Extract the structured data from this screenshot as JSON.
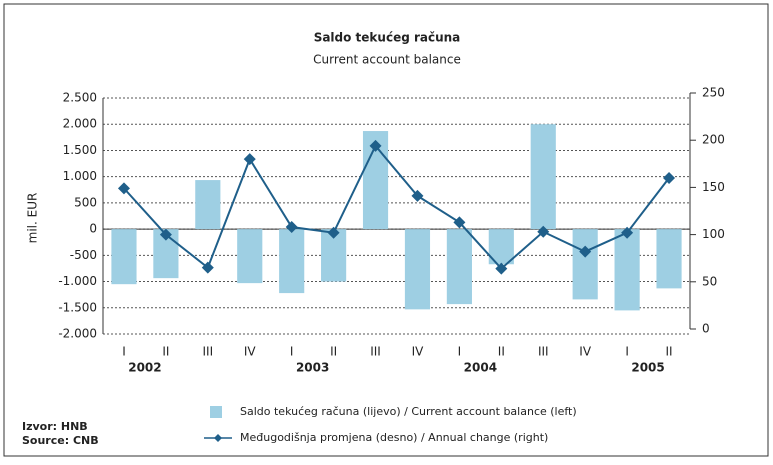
{
  "chart_data": {
    "type": "bar_line",
    "title": "Saldo tekućeg računa",
    "subtitle": "Current account balance",
    "y_label": "mil. EUR",
    "categories": [
      "I",
      "II",
      "III",
      "IV",
      "I",
      "II",
      "III",
      "IV",
      "I",
      "II",
      "III",
      "IV",
      "I",
      "II"
    ],
    "year_labels": [
      "2002",
      "2003",
      "2004",
      "2005"
    ],
    "series": [
      {
        "name": "Saldo tekućeg računa (lijevo) / Current account balance (left)",
        "color": "#9ecfe3",
        "kind": "bar",
        "axis": "y",
        "values": [
          -1050,
          -935,
          935,
          -1030,
          -1220,
          -1000,
          1870,
          -1530,
          -1430,
          -670,
          2000,
          -1340,
          -1550,
          -1130
        ]
      },
      {
        "name": "Međugodišnja promjena (desno) / Annual change (right)",
        "color": "#1f5f8a",
        "kind": "line",
        "axis": "y2",
        "values": [
          149,
          100,
          65,
          180,
          108,
          102,
          194,
          141,
          113,
          64,
          103,
          82,
          102,
          160
        ]
      }
    ],
    "ylim": [
      -2000,
      2500
    ],
    "yticks": [
      {
        "value": -2000,
        "label": "-2.000"
      },
      {
        "value": -1500,
        "label": "-1.500"
      },
      {
        "value": -1000,
        "label": "-1.000"
      },
      -500,
      0,
      500,
      {
        "value": 1000,
        "label": "1.000"
      },
      {
        "value": 1500,
        "label": "1.500"
      },
      {
        "value": 2000,
        "label": "2.000"
      },
      {
        "value": 2500,
        "label": "2.500"
      }
    ],
    "y2lim": [
      0,
      250
    ],
    "y2ticks": [
      0,
      50,
      100,
      150,
      200,
      250
    ],
    "grid": true,
    "source": [
      "Izvor: HNB",
      "Source: CNB"
    ]
  }
}
